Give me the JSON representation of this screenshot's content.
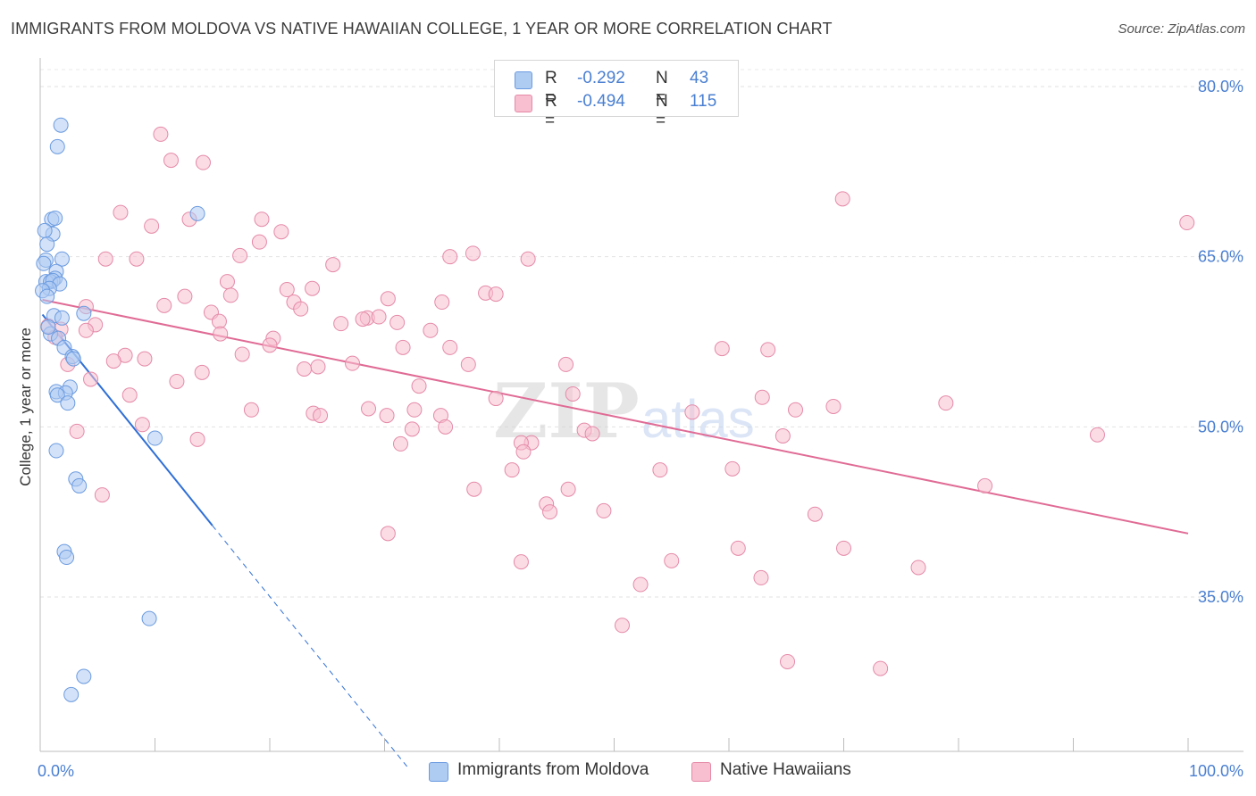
{
  "title": "IMMIGRANTS FROM MOLDOVA VS NATIVE HAWAIIAN COLLEGE, 1 YEAR OR MORE CORRELATION CHART",
  "source": "Source: ZipAtlas.com",
  "watermark": {
    "zip": "ZIP",
    "atlas": "atlas"
  },
  "legend": {
    "rows": [
      {
        "r_label": "R =",
        "r_value": "-0.292",
        "n_label": "N =",
        "n_value": "43",
        "color": "#aecbf2",
        "border": "#6b9be0"
      },
      {
        "r_label": "R =",
        "r_value": "-0.494",
        "n_label": "N =",
        "n_value": "115",
        "color": "#f7bfd0",
        "border": "#e58aa8"
      }
    ]
  },
  "bottom_legend": [
    {
      "label": "Immigrants from Moldova",
      "color": "#aecbf2",
      "border": "#6b9be0"
    },
    {
      "label": "Native Hawaiians",
      "color": "#f7bfd0",
      "border": "#e58aa8"
    }
  ],
  "chart_data": {
    "type": "scatter",
    "title": "IMMIGRANTS FROM MOLDOVA VS NATIVE HAWAIIAN COLLEGE, 1 YEAR OR MORE CORRELATION CHART",
    "xlabel": "",
    "ylabel": "College, 1 year or more",
    "xlim": [
      0,
      100
    ],
    "ylim": [
      21,
      83
    ],
    "x_tick_labels": [
      "0.0%",
      "100.0%"
    ],
    "y_ticks": [
      35,
      50,
      65,
      80
    ],
    "y_tick_labels": [
      "35.0%",
      "50.0%",
      "65.0%",
      "80.0%"
    ],
    "grid": true,
    "series": [
      {
        "name": "Immigrants from Moldova",
        "color": "#6b9be0",
        "fill": "#aecbf2",
        "trend": {
          "x0": 0.2,
          "y0": 59.9,
          "x1": 15.0,
          "y1": 41.3,
          "dash_to_x": 32.0,
          "dash_to_y": 20.0,
          "color": "#2f6fd6"
        },
        "points": [
          [
            1.8,
            76.6
          ],
          [
            1.5,
            74.7
          ],
          [
            13.7,
            68.8
          ],
          [
            1.0,
            68.3
          ],
          [
            1.3,
            68.4
          ],
          [
            1.1,
            67.0
          ],
          [
            0.4,
            67.3
          ],
          [
            0.6,
            66.1
          ],
          [
            1.9,
            64.8
          ],
          [
            0.5,
            64.7
          ],
          [
            0.3,
            64.4
          ],
          [
            1.4,
            63.7
          ],
          [
            1.3,
            63.1
          ],
          [
            0.5,
            62.8
          ],
          [
            0.9,
            62.8
          ],
          [
            1.1,
            62.9
          ],
          [
            1.7,
            62.6
          ],
          [
            0.8,
            62.2
          ],
          [
            0.2,
            62.0
          ],
          [
            0.6,
            61.5
          ],
          [
            1.2,
            59.8
          ],
          [
            1.9,
            59.6
          ],
          [
            3.8,
            60.0
          ],
          [
            0.9,
            58.2
          ],
          [
            1.6,
            57.8
          ],
          [
            2.1,
            57.0
          ],
          [
            0.7,
            58.8
          ],
          [
            2.8,
            56.2
          ],
          [
            2.9,
            56.0
          ],
          [
            1.4,
            53.1
          ],
          [
            2.6,
            53.5
          ],
          [
            2.2,
            53.0
          ],
          [
            1.5,
            52.8
          ],
          [
            2.4,
            52.1
          ],
          [
            10.0,
            49.0
          ],
          [
            1.4,
            47.9
          ],
          [
            3.1,
            45.4
          ],
          [
            3.4,
            44.8
          ],
          [
            2.1,
            39.0
          ],
          [
            2.3,
            38.5
          ],
          [
            9.5,
            33.1
          ],
          [
            3.8,
            28.0
          ],
          [
            2.7,
            26.4
          ]
        ]
      },
      {
        "name": "Native Hawaiians",
        "color": "#e58aa8",
        "fill": "#f7bfd0",
        "trend": {
          "x0": 0.2,
          "y0": 61.2,
          "x1": 100.0,
          "y1": 40.6,
          "color": "#e06b95"
        },
        "points": [
          [
            10.5,
            75.8
          ],
          [
            11.4,
            73.5
          ],
          [
            14.2,
            73.3
          ],
          [
            69.9,
            70.1
          ],
          [
            99.9,
            68.0
          ],
          [
            7.0,
            68.9
          ],
          [
            9.7,
            67.7
          ],
          [
            13.0,
            68.3
          ],
          [
            19.3,
            68.3
          ],
          [
            21.0,
            67.2
          ],
          [
            19.1,
            66.3
          ],
          [
            17.4,
            65.1
          ],
          [
            37.7,
            65.3
          ],
          [
            35.7,
            65.0
          ],
          [
            42.5,
            64.8
          ],
          [
            5.7,
            64.8
          ],
          [
            8.4,
            64.8
          ],
          [
            25.5,
            64.3
          ],
          [
            16.3,
            62.8
          ],
          [
            23.7,
            62.2
          ],
          [
            21.5,
            62.1
          ],
          [
            12.6,
            61.5
          ],
          [
            16.6,
            61.6
          ],
          [
            30.3,
            61.3
          ],
          [
            38.8,
            61.8
          ],
          [
            39.7,
            61.7
          ],
          [
            22.1,
            61.0
          ],
          [
            10.8,
            60.7
          ],
          [
            22.7,
            60.4
          ],
          [
            4.0,
            60.6
          ],
          [
            14.9,
            60.1
          ],
          [
            28.5,
            59.6
          ],
          [
            29.5,
            59.7
          ],
          [
            28.1,
            59.5
          ],
          [
            26.2,
            59.1
          ],
          [
            15.6,
            59.3
          ],
          [
            31.1,
            59.2
          ],
          [
            4.8,
            59.0
          ],
          [
            0.7,
            58.9
          ],
          [
            1.8,
            58.6
          ],
          [
            4.0,
            58.5
          ],
          [
            34.0,
            58.5
          ],
          [
            15.7,
            58.2
          ],
          [
            1.3,
            57.9
          ],
          [
            20.3,
            57.8
          ],
          [
            20.0,
            57.2
          ],
          [
            31.6,
            57.0
          ],
          [
            35.7,
            57.0
          ],
          [
            59.4,
            56.9
          ],
          [
            63.4,
            56.8
          ],
          [
            17.6,
            56.4
          ],
          [
            7.4,
            56.3
          ],
          [
            9.1,
            56.0
          ],
          [
            6.4,
            55.8
          ],
          [
            27.2,
            55.6
          ],
          [
            2.4,
            55.5
          ],
          [
            24.2,
            55.3
          ],
          [
            23.0,
            55.1
          ],
          [
            37.3,
            55.5
          ],
          [
            45.8,
            55.5
          ],
          [
            14.1,
            54.8
          ],
          [
            4.4,
            54.2
          ],
          [
            11.9,
            54.0
          ],
          [
            33.0,
            53.6
          ],
          [
            7.8,
            52.8
          ],
          [
            39.7,
            52.5
          ],
          [
            46.4,
            52.9
          ],
          [
            62.9,
            52.6
          ],
          [
            78.9,
            52.1
          ],
          [
            69.1,
            51.8
          ],
          [
            56.8,
            51.3
          ],
          [
            65.8,
            51.5
          ],
          [
            18.4,
            51.5
          ],
          [
            23.8,
            51.2
          ],
          [
            24.4,
            51.0
          ],
          [
            28.6,
            51.6
          ],
          [
            32.6,
            51.5
          ],
          [
            30.2,
            51.0
          ],
          [
            34.9,
            51.0
          ],
          [
            35.3,
            50.0
          ],
          [
            8.9,
            50.2
          ],
          [
            32.4,
            49.8
          ],
          [
            3.2,
            49.6
          ],
          [
            47.4,
            49.7
          ],
          [
            48.1,
            49.4
          ],
          [
            64.7,
            49.2
          ],
          [
            92.1,
            49.3
          ],
          [
            13.7,
            48.9
          ],
          [
            31.4,
            48.5
          ],
          [
            42.8,
            48.6
          ],
          [
            41.9,
            48.6
          ],
          [
            42.1,
            47.8
          ],
          [
            41.1,
            46.2
          ],
          [
            54.0,
            46.2
          ],
          [
            60.3,
            46.3
          ],
          [
            82.3,
            44.8
          ],
          [
            37.8,
            44.5
          ],
          [
            46.0,
            44.5
          ],
          [
            5.4,
            44.0
          ],
          [
            44.1,
            43.2
          ],
          [
            44.4,
            42.5
          ],
          [
            49.1,
            42.6
          ],
          [
            67.5,
            42.3
          ],
          [
            30.3,
            40.6
          ],
          [
            60.8,
            39.3
          ],
          [
            70.0,
            39.3
          ],
          [
            55.0,
            38.2
          ],
          [
            41.9,
            38.1
          ],
          [
            76.5,
            37.6
          ],
          [
            62.8,
            36.7
          ],
          [
            52.3,
            36.1
          ],
          [
            50.7,
            32.5
          ],
          [
            65.1,
            29.3
          ],
          [
            73.2,
            28.7
          ],
          [
            35.0,
            61.0
          ]
        ]
      }
    ]
  }
}
